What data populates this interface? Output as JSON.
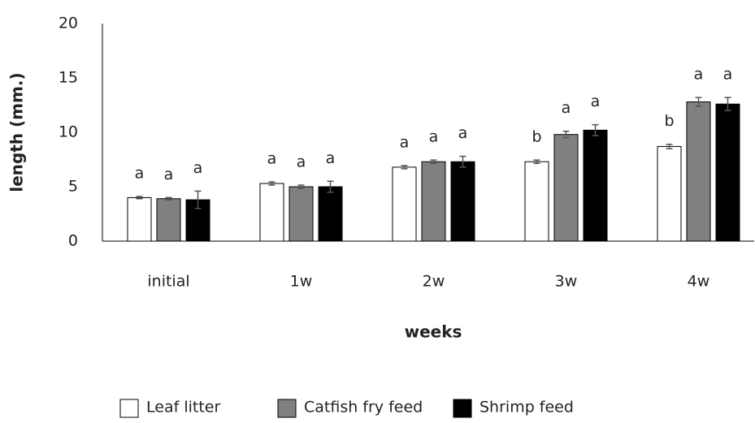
{
  "chart_data": {
    "type": "bar",
    "x_label": "weeks",
    "y_label": "length (mm.)",
    "categories": [
      "initial",
      "1w",
      "2w",
      "3w",
      "4w"
    ],
    "series": [
      {
        "name": "Leaf litter",
        "color": "#ffffff",
        "values": [
          4.0,
          5.3,
          6.8,
          7.3,
          8.7
        ],
        "errors": [
          0.1,
          0.15,
          0.15,
          0.15,
          0.2
        ],
        "letters": [
          "a",
          "a",
          "a",
          "b",
          "b"
        ]
      },
      {
        "name": "Catfish fry feed",
        "color": "#808080",
        "values": [
          3.9,
          5.0,
          7.3,
          9.8,
          12.8
        ],
        "errors": [
          0.1,
          0.15,
          0.15,
          0.3,
          0.4
        ],
        "letters": [
          "a",
          "a",
          "a",
          "a",
          "a"
        ]
      },
      {
        "name": "Shrimp feed",
        "color": "#000000",
        "values": [
          3.8,
          5.0,
          7.3,
          10.2,
          12.6
        ],
        "errors": [
          0.8,
          0.5,
          0.5,
          0.5,
          0.6
        ],
        "letters": [
          "a",
          "a",
          "a",
          "a",
          "a"
        ]
      }
    ],
    "ylim": [
      0,
      20
    ],
    "yticks": [
      0,
      5,
      10,
      15,
      20
    ],
    "grid": false,
    "legend": "bottom"
  }
}
